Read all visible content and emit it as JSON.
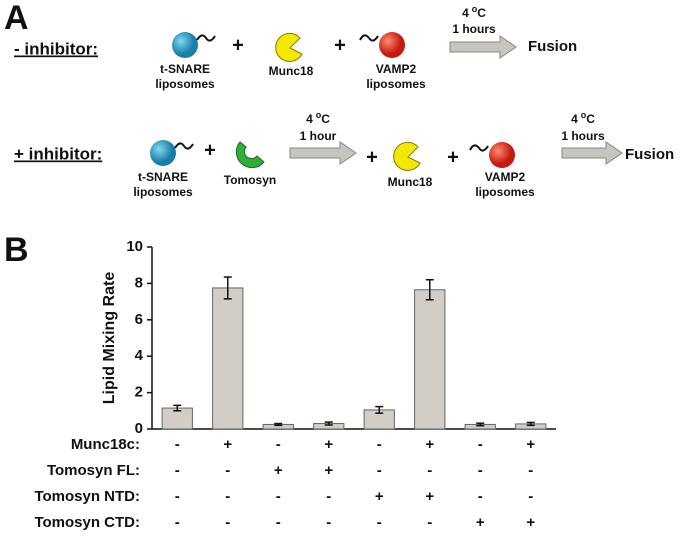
{
  "panel_a": {
    "label": "A",
    "rows": [
      {
        "label": "- inhibitor:",
        "items": [
          "t-SNARE",
          "liposomes",
          "+",
          "Munc18",
          "+",
          "VAMP2",
          "liposomes"
        ],
        "arrows": [
          {
            "temp": [
              "4",
              "o",
              "C"
            ],
            "time": "1 hours"
          }
        ],
        "result": "Fusion"
      },
      {
        "label": "+ inhibitor:",
        "items": [
          "t-SNARE",
          "liposomes",
          "+",
          "Tomosyn",
          "+",
          "Munc18",
          "+",
          "VAMP2",
          "liposomes"
        ],
        "arrows": [
          {
            "temp": [
              "4",
              "o",
              "C"
            ],
            "time": "1 hour"
          },
          {
            "temp": [
              "4",
              "o",
              "C"
            ],
            "time": "1 hours"
          }
        ],
        "result": "Fusion"
      }
    ]
  },
  "panel_b": {
    "label": "B"
  },
  "chart_data": {
    "type": "bar",
    "ylabel": "Lipid Mixing Rate",
    "categories": [
      null,
      null,
      null,
      null,
      null,
      null,
      null,
      null
    ],
    "values": [
      1.15,
      7.75,
      0.25,
      0.3,
      1.05,
      7.65,
      0.25,
      0.28
    ],
    "errors": [
      0.15,
      0.6,
      0.05,
      0.08,
      0.18,
      0.55,
      0.07,
      0.08
    ],
    "color": "#d2cec6",
    "ylim": [
      0,
      10
    ],
    "yticks": [
      0,
      2,
      4,
      6,
      8,
      10
    ],
    "conditions": [
      {
        "label": "Munc18c:",
        "marks": [
          "-",
          "+",
          "-",
          "+",
          "-",
          "+",
          "-",
          "+"
        ]
      },
      {
        "label": "Tomosyn FL:",
        "marks": [
          "-",
          "-",
          "+",
          "+",
          "-",
          "-",
          "-",
          "-"
        ]
      },
      {
        "label": "Tomosyn NTD:",
        "marks": [
          "-",
          "-",
          "-",
          "-",
          "+",
          "+",
          "-",
          "-"
        ]
      },
      {
        "label": "Tomosyn CTD:",
        "marks": [
          "-",
          "-",
          "-",
          "-",
          "-",
          "-",
          "+",
          "+"
        ]
      }
    ]
  }
}
